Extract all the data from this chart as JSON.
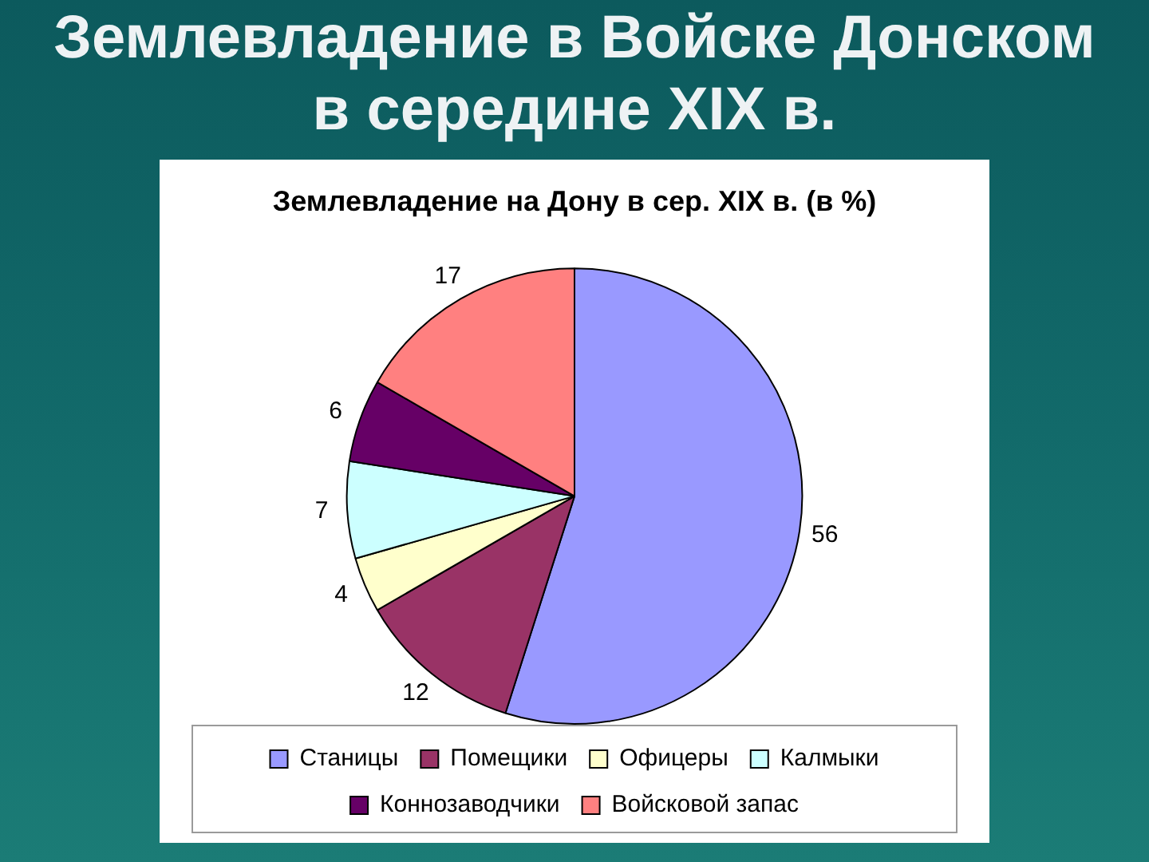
{
  "chart_data": {
    "type": "pie",
    "title": "Землевладение в Войске Донском в середине XIX в.",
    "subtitle": "Землевладение на Дону в сер. XIX в. (в %)",
    "categories": [
      "Станицы",
      "Помещики",
      "Офицеры",
      "Калмыки",
      "Коннозаводчики",
      "Войсковой запас"
    ],
    "values": [
      56,
      12,
      4,
      7,
      6,
      17
    ],
    "colors": [
      "#9999ff",
      "#993366",
      "#ffffcc",
      "#ccffff",
      "#660066",
      "#ff8080"
    ],
    "data_labels": true,
    "legend": "bottom"
  }
}
